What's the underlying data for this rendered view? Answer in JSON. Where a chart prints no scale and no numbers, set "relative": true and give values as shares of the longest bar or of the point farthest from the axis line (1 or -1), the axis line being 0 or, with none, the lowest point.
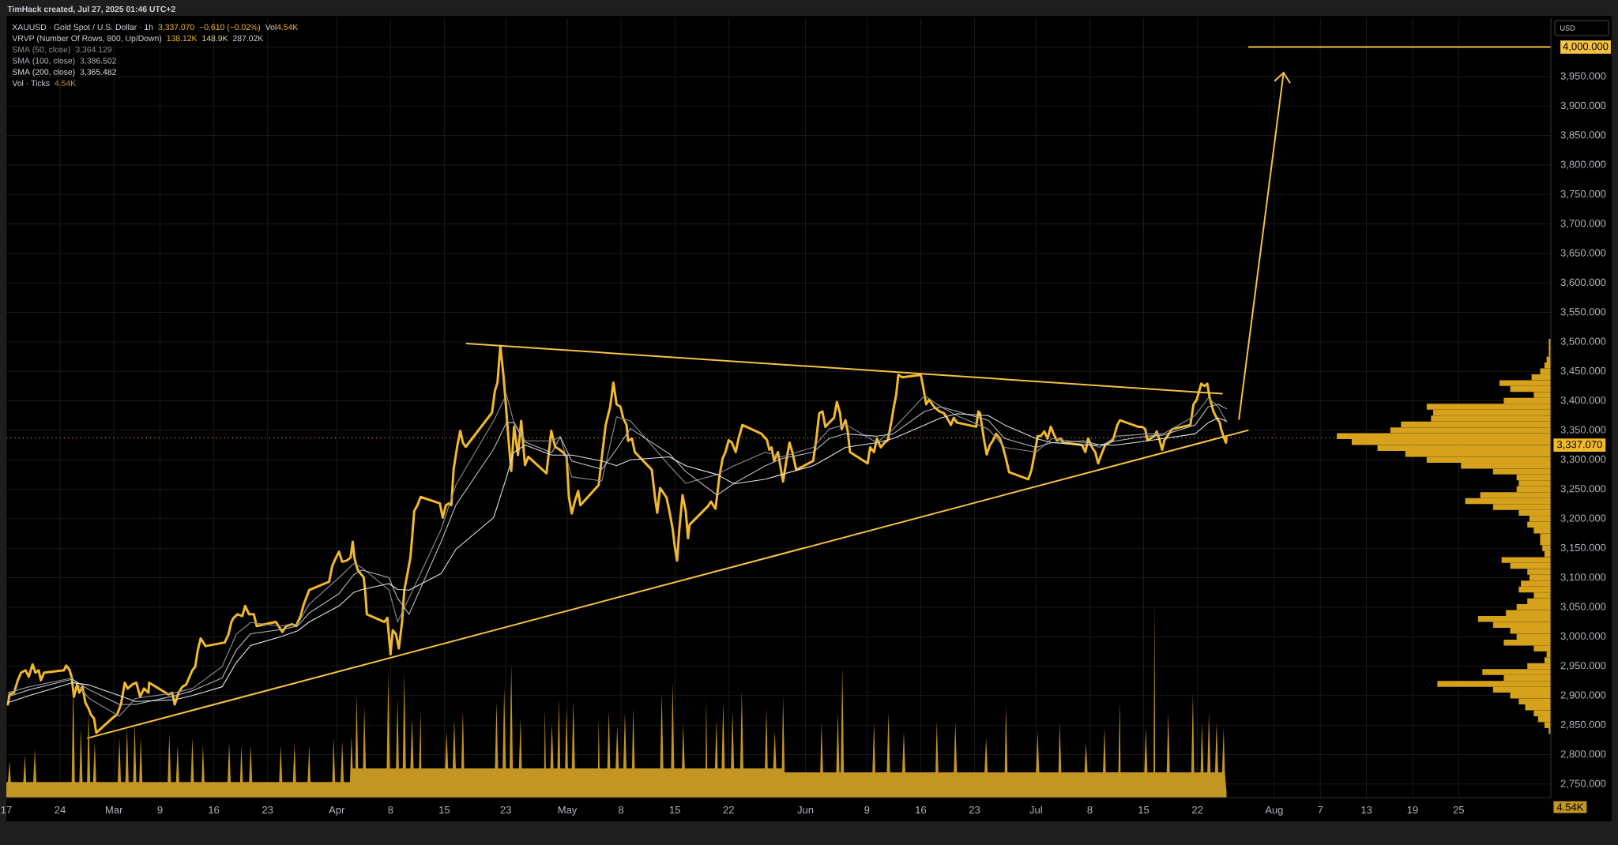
{
  "chart_data": [
    {
      "type": "line",
      "title": "XAUUSD · Gold Spot / U.S. Dollar · 1h",
      "ylabel": "USD",
      "annotations": [
        "TimHack created, Jul 27, 2025 01:46 UTC+2",
        "3,337.070",
        "−0.610 (−0.02%)",
        "Vol",
        "4.54K",
        "VRVP (Number Of Rows, 800, Up/Down)",
        "138.12K",
        "148.9K",
        "287.02K",
        "3,364.129",
        "3,386.502",
        "3,365.482"
      ],
      "xlim": [
        "2025-02-17T00:00",
        "2025-09-06T00:00"
      ],
      "ylim": [
        2727,
        4049
      ],
      "xticks": [
        {
          "value": "2025-02-17",
          "label": "17"
        },
        {
          "value": "2025-02-24",
          "label": "24"
        },
        {
          "value": "2025-03-03",
          "label": "Mar"
        },
        {
          "value": "2025-03-09",
          "label": "9"
        },
        {
          "value": "2025-03-16",
          "label": "16"
        },
        {
          "value": "2025-03-23",
          "label": "23"
        },
        {
          "value": "2025-04-01",
          "label": "Apr"
        },
        {
          "value": "2025-04-08",
          "label": "8"
        },
        {
          "value": "2025-04-15",
          "label": "15"
        },
        {
          "value": "2025-04-23",
          "label": "23"
        },
        {
          "value": "2025-05-01",
          "label": "May"
        },
        {
          "value": "2025-05-08",
          "label": "8"
        },
        {
          "value": "2025-05-15",
          "label": "15"
        },
        {
          "value": "2025-05-22",
          "label": "22"
        },
        {
          "value": "2025-06-01",
          "label": "Jun"
        },
        {
          "value": "2025-06-09",
          "label": "9"
        },
        {
          "value": "2025-06-16",
          "label": "16"
        },
        {
          "value": "2025-06-23",
          "label": "23"
        },
        {
          "value": "2025-07-01",
          "label": "Jul"
        },
        {
          "value": "2025-07-08",
          "label": "8"
        },
        {
          "value": "2025-07-15",
          "label": "15"
        },
        {
          "value": "2025-07-22",
          "label": "22"
        },
        {
          "value": "2025-08-01",
          "label": "Aug"
        },
        {
          "value": "2025-08-07",
          "label": "7"
        },
        {
          "value": "2025-08-13",
          "label": "13"
        },
        {
          "value": "2025-08-19",
          "label": "19"
        },
        {
          "value": "2025-08-25",
          "label": "25"
        }
      ],
      "yticks": [
        {
          "value": 2750,
          "label": "2,750.000"
        },
        {
          "value": 2800,
          "label": "2,800.000"
        },
        {
          "value": 2850,
          "label": "2,850.000"
        },
        {
          "value": 2900,
          "label": "2,900.000"
        },
        {
          "value": 2950,
          "label": "2,950.000"
        },
        {
          "value": 3000,
          "label": "3,000.000"
        },
        {
          "value": 3050,
          "label": "3,050.000"
        },
        {
          "value": 3100,
          "label": "3,100.000"
        },
        {
          "value": 3150,
          "label": "3,150.000"
        },
        {
          "value": 3200,
          "label": "3,200.000"
        },
        {
          "value": 3250,
          "label": "3,250.000"
        },
        {
          "value": 3300,
          "label": "3,300.000"
        },
        {
          "value": 3350,
          "label": "3,350.000"
        },
        {
          "value": 3400,
          "label": "3,400.000"
        },
        {
          "value": 3450,
          "label": "3,450.000"
        },
        {
          "value": 3500,
          "label": "3,500.000"
        },
        {
          "value": 3550,
          "label": "3,550.000"
        },
        {
          "value": 3600,
          "label": "3,600.000"
        },
        {
          "value": 3650,
          "label": "3,650.000"
        },
        {
          "value": 3700,
          "label": "3,700.000"
        },
        {
          "value": 3750,
          "label": "3,750.000"
        },
        {
          "value": 3800,
          "label": "3,800.000"
        },
        {
          "value": 3850,
          "label": "3,850.000"
        },
        {
          "value": 3900,
          "label": "3,900.000"
        },
        {
          "value": 3950,
          "label": "3,950.000"
        },
        {
          "value": 4000,
          "label": "4,000.000"
        }
      ],
      "grid": true,
      "legend": "top left",
      "ref_lines": [
        {
          "axis": "y",
          "value": 3337.07,
          "label": "3,337.070",
          "color": "#f2b92c",
          "line_style": "dotted"
        }
      ],
      "x": [
        "2025-02-17T05:00",
        "2025-02-20T00:00",
        "2025-02-25T14:00",
        "2025-02-27T19:00",
        "2025-03-03T17:00",
        "2025-03-05T19:00",
        "2025-03-11T00:00",
        "2025-03-13T05:00",
        "2025-03-17T02:00",
        "2025-03-18T22:00",
        "2025-03-20T19:00",
        "2025-03-24T17:00",
        "2025-03-26T22:00",
        "2025-03-28T10:00",
        "2025-04-01T07:00",
        "2025-04-03T05:00",
        "2025-04-04T07:00",
        "2025-04-07T19:00",
        "2025-04-08T22:00",
        "2025-04-10T10:00",
        "2025-04-14T14:00",
        "2025-04-16T12:00",
        "2025-04-21T10:00",
        "2025-04-23T02:00",
        "2025-04-24T00:00",
        "2025-04-25T12:00",
        "2025-04-29T00:00",
        "2025-04-30T02:00",
        "2025-05-01T14:00",
        "2025-05-05T12:00",
        "2025-05-07T10:00",
        "2025-05-09T05:00",
        "2025-05-14T07:00",
        "2025-05-16T10:00",
        "2025-05-20T12:00",
        "2025-05-22T17:00",
        "2025-05-26T19:00",
        "2025-05-28T22:00",
        "2025-06-02T00:00",
        "2025-06-04T02:00",
        "2025-06-06T05:00",
        "2025-06-10T07:00",
        "2025-06-12T10:00",
        "2025-06-16T12:00",
        "2025-06-18T14:00",
        "2025-06-20T17:00",
        "2025-06-24T19:00",
        "2025-06-26T22:00",
        "2025-07-01T00:00",
        "2025-07-03T02:00",
        "2025-07-07T05:00",
        "2025-07-09T07:00",
        "2025-07-11T10:00",
        "2025-07-15T12:00",
        "2025-07-17T14:00",
        "2025-07-21T17:00",
        "2025-07-23T10:00",
        "2025-07-24T17:00",
        "2025-07-25T19:00"
      ],
      "series": [
        {
          "color": "#f2b92c",
          "x": [
            "2025-02-17T05:00",
            "2025-02-17T10:00",
            "2025-02-18T00:00",
            "2025-02-18T12:00",
            "2025-02-18T22:00",
            "2025-02-19T12:00",
            "2025-02-19T22:00",
            "2025-02-20T10:00",
            "2025-02-20T19:00",
            "2025-02-21T05:00",
            "2025-02-21T12:00",
            "2025-02-21T22:00",
            "2025-02-24T12:00",
            "2025-02-24T19:00",
            "2025-02-25T05:00",
            "2025-02-25T12:00",
            "2025-02-25T19:00",
            "2025-02-26T05:00",
            "2025-02-26T12:00",
            "2025-02-26T22:00",
            "2025-02-27T07:00",
            "2025-02-27T17:00",
            "2025-02-28T00:00",
            "2025-02-28T10:00",
            "2025-02-28T17:00",
            "2025-03-03T00:00",
            "2025-03-03T10:00",
            "2025-03-03T22:00",
            "2025-03-04T10:00",
            "2025-03-04T19:00",
            "2025-03-05T10:00",
            "2025-03-05T22:00",
            "2025-03-06T10:00",
            "2025-03-06T22:00",
            "2025-03-07T12:00",
            "2025-03-07T14:00",
            "2025-03-10T02:00",
            "2025-03-10T14:00",
            "2025-03-10T22:00",
            "2025-03-11T10:00",
            "2025-03-11T22:00",
            "2025-03-12T10:00",
            "2025-03-13T05:00",
            "2025-03-13T14:00",
            "2025-03-13T22:00",
            "2025-03-14T07:00",
            "2025-03-14T22:00",
            "2025-03-17T10:00",
            "2025-03-17T22:00",
            "2025-03-18T07:00",
            "2025-03-18T14:00",
            "2025-03-19T02:00",
            "2025-03-19T17:00",
            "2025-03-20T02:00",
            "2025-03-20T14:00",
            "2025-03-21T05:00",
            "2025-03-21T14:00",
            "2025-03-24T02:00",
            "2025-03-24T22:00",
            "2025-03-25T10:00",
            "2025-03-26T05:00",
            "2025-03-26T17:00",
            "2025-03-27T07:00",
            "2025-03-27T17:00",
            "2025-03-28T10:00",
            "2025-03-31T00:00",
            "2025-03-31T10:00",
            "2025-03-31T19:00",
            "2025-04-01T07:00",
            "2025-04-01T17:00",
            "2025-04-02T07:00",
            "2025-04-02T19:00",
            "2025-04-03T02:00",
            "2025-04-03T07:00",
            "2025-04-03T17:00",
            "2025-04-04T02:00",
            "2025-04-04T12:00",
            "2025-04-04T17:00",
            "2025-04-04T22:00",
            "2025-04-07T05:00",
            "2025-04-07T14:00",
            "2025-04-08T00:00",
            "2025-04-08T07:00",
            "2025-04-08T17:00",
            "2025-04-09T02:00",
            "2025-04-09T12:00",
            "2025-04-09T19:00",
            "2025-04-10T05:00",
            "2025-04-10T14:00",
            "2025-04-10T19:00",
            "2025-04-11T02:00",
            "2025-04-11T12:00",
            "2025-04-11T22:00",
            "2025-04-14T10:00",
            "2025-04-14T19:00",
            "2025-04-15T05:00",
            "2025-04-15T14:00",
            "2025-04-15T22:00",
            "2025-04-16T05:00",
            "2025-04-16T17:00",
            "2025-04-17T02:00",
            "2025-04-17T10:00",
            "2025-04-17T19:00",
            "2025-04-21T05:00",
            "2025-04-21T14:00",
            "2025-04-21T22:00",
            "2025-04-22T07:00",
            "2025-04-22T17:00",
            "2025-04-23T02:00",
            "2025-04-23T10:00",
            "2025-04-23T17:00",
            "2025-04-24T02:00",
            "2025-04-24T14:00",
            "2025-04-25T00:00",
            "2025-04-25T12:00",
            "2025-04-25T22:00",
            "2025-04-28T07:00",
            "2025-04-28T22:00",
            "2025-04-29T10:00",
            "2025-04-29T22:00",
            "2025-04-30T12:00",
            "2025-04-30T22:00",
            "2025-05-01T05:00",
            "2025-05-01T14:00",
            "2025-05-02T00:00",
            "2025-05-02T10:00",
            "2025-05-02T17:00",
            "2025-05-05T02:00",
            "2025-05-05T12:00",
            "2025-05-06T00:00",
            "2025-05-06T14:00",
            "2025-05-07T00:00",
            "2025-05-07T10:00",
            "2025-05-07T22:00",
            "2025-05-08T07:00",
            "2025-05-08T17:00",
            "2025-05-08T22:00",
            "2025-05-09T10:00",
            "2025-05-09T19:00",
            "2025-05-12T00:00",
            "2025-05-12T10:00",
            "2025-05-12T17:00",
            "2025-05-13T02:00",
            "2025-05-13T12:00",
            "2025-05-13T22:00",
            "2025-05-14T07:00",
            "2025-05-14T17:00",
            "2025-05-15T00:00",
            "2025-05-15T07:00",
            "2025-05-15T14:00",
            "2025-05-16T00:00",
            "2025-05-16T10:00",
            "2025-05-16T17:00",
            "2025-05-16T22:00",
            "2025-05-19T07:00",
            "2025-05-19T17:00",
            "2025-05-20T07:00",
            "2025-05-20T19:00",
            "2025-05-21T05:00",
            "2025-05-21T14:00",
            "2025-05-22T00:00",
            "2025-05-22T10:00",
            "2025-05-22T22:00",
            "2025-05-23T07:00",
            "2025-05-23T19:00",
            "2025-05-26T07:00",
            "2025-05-27T00:00",
            "2025-05-27T07:00",
            "2025-05-27T14:00",
            "2025-05-27T22:00",
            "2025-05-28T10:00",
            "2025-05-28T22:00",
            "2025-05-29T02:00",
            "2025-05-29T12:00",
            "2025-05-29T22:00",
            "2025-05-30T07:00",
            "2025-05-30T19:00",
            "2025-06-02T00:00",
            "2025-06-02T10:00",
            "2025-06-02T19:00",
            "2025-06-03T05:00",
            "2025-06-03T14:00",
            "2025-06-04T02:00",
            "2025-06-04T17:00",
            "2025-06-05T02:00",
            "2025-06-05T12:00",
            "2025-06-05T17:00",
            "2025-06-06T05:00",
            "2025-06-06T12:00",
            "2025-06-06T19:00",
            "2025-06-09T02:00",
            "2025-06-09T10:00",
            "2025-06-09T22:00",
            "2025-06-10T07:00",
            "2025-06-10T19:00",
            "2025-06-11T07:00",
            "2025-06-11T17:00",
            "2025-06-12T05:00",
            "2025-06-12T12:00",
            "2025-06-12T19:00",
            "2025-06-13T02:00",
            "2025-06-13T14:00",
            "2025-06-16T00:00",
            "2025-06-16T07:00",
            "2025-06-16T17:00",
            "2025-06-17T02:00",
            "2025-06-17T17:00",
            "2025-06-18T10:00",
            "2025-06-19T00:00",
            "2025-06-19T10:00",
            "2025-06-19T22:00",
            "2025-06-20T07:00",
            "2025-06-20T17:00",
            "2025-06-23T05:00",
            "2025-06-23T12:00",
            "2025-06-23T17:00",
            "2025-06-24T05:00",
            "2025-06-24T14:00",
            "2025-06-25T00:00",
            "2025-06-25T10:00",
            "2025-06-25T19:00",
            "2025-06-26T07:00",
            "2025-06-26T17:00",
            "2025-06-27T02:00",
            "2025-06-27T12:00",
            "2025-06-30T00:00",
            "2025-06-30T10:00",
            "2025-06-30T19:00",
            "2025-07-01T05:00",
            "2025-07-01T14:00",
            "2025-07-02T02:00",
            "2025-07-02T12:00",
            "2025-07-02T22:00",
            "2025-07-03T07:00",
            "2025-07-03T17:00",
            "2025-07-04T05:00",
            "2025-07-04T14:00",
            "2025-07-07T00:00",
            "2025-07-07T10:00",
            "2025-07-07T19:00",
            "2025-07-08T07:00",
            "2025-07-08T17:00",
            "2025-07-09T02:00",
            "2025-07-09T12:00",
            "2025-07-10T00:00",
            "2025-07-10T12:00",
            "2025-07-11T00:00",
            "2025-07-11T14:00",
            "2025-07-11T22:00",
            "2025-07-14T07:00",
            "2025-07-14T19:00",
            "2025-07-15T05:00",
            "2025-07-15T12:00",
            "2025-07-15T22:00",
            "2025-07-16T10:00",
            "2025-07-16T17:00",
            "2025-07-17T02:00",
            "2025-07-17T10:00",
            "2025-07-17T17:00",
            "2025-07-18T02:00",
            "2025-07-18T17:00",
            "2025-07-21T02:00",
            "2025-07-21T12:00",
            "2025-07-21T22:00",
            "2025-07-22T12:00",
            "2025-07-22T22:00",
            "2025-07-23T07:00",
            "2025-07-23T14:00",
            "2025-07-24T02:00",
            "2025-07-24T12:00",
            "2025-07-24T22:00",
            "2025-07-25T02:00",
            "2025-07-25T12:00",
            "2025-07-25T17:00",
            "2025-07-25T19:00"
          ],
          "values": [
            2885,
            2902,
            2905,
            2926,
            2939,
            2943,
            2932,
            2953,
            2939,
            2943,
            2926,
            2939,
            2943,
            2951,
            2944,
            2932,
            2898,
            2919,
            2905,
            2915,
            2888,
            2878,
            2868,
            2861,
            2837,
            2864,
            2868,
            2885,
            2922,
            2912,
            2919,
            2922,
            2898,
            2912,
            2905,
            2922,
            2902,
            2905,
            2885,
            2905,
            2915,
            2919,
            2943,
            2949,
            2977,
            2997,
            2984,
            2990,
            3004,
            3025,
            3032,
            3038,
            3035,
            3052,
            3038,
            3038,
            3018,
            3025,
            3008,
            3018,
            3021,
            3018,
            3035,
            3055,
            3079,
            3093,
            3120,
            3131,
            3144,
            3127,
            3129,
            3134,
            3161,
            3134,
            3114,
            3107,
            3101,
            3076,
            3038,
            3025,
            3032,
            2970,
            3011,
            3004,
            2980,
            3025,
            3079,
            3107,
            3134,
            3165,
            3213,
            3223,
            3237,
            3226,
            3202,
            3223,
            3226,
            3223,
            3284,
            3325,
            3349,
            3329,
            3322,
            3380,
            3417,
            3431,
            3493,
            3441,
            3380,
            3325,
            3281,
            3356,
            3308,
            3366,
            3291,
            3305,
            3277,
            3349,
            3322,
            3318,
            3312,
            3305,
            3237,
            3209,
            3230,
            3247,
            3223,
            3257,
            3305,
            3359,
            3390,
            3431,
            3394,
            3390,
            3370,
            3359,
            3332,
            3336,
            3313,
            3283,
            3236,
            3210,
            3252,
            3244,
            3236,
            3213,
            3183,
            3152,
            3129,
            3183,
            3240,
            3213,
            3167,
            3190,
            3221,
            3229,
            3217,
            3271,
            3302,
            3313,
            3333,
            3329,
            3313,
            3336,
            3359,
            3344,
            3333,
            3317,
            3321,
            3298,
            3313,
            3275,
            3263,
            3298,
            3329,
            3313,
            3283,
            3298,
            3336,
            3379,
            3382,
            3356,
            3363,
            3371,
            3398,
            3379,
            3352,
            3367,
            3348,
            3313,
            3294,
            3321,
            3313,
            3336,
            3321,
            3329,
            3333,
            3367,
            3390,
            3409,
            3444,
            3440,
            3444,
            3425,
            3394,
            3402,
            3390,
            3382,
            3379,
            3371,
            3359,
            3371,
            3363,
            3356,
            3382,
            3379,
            3336,
            3309,
            3325,
            3333,
            3344,
            3336,
            3321,
            3302,
            3279,
            3267,
            3283,
            3309,
            3340,
            3340,
            3348,
            3336,
            3356,
            3344,
            3333,
            3336,
            3329,
            3325,
            3313,
            3336,
            3321,
            3313,
            3294,
            3309,
            3325,
            3329,
            3333,
            3359,
            3367,
            3356,
            3356,
            3352,
            3333,
            3336,
            3340,
            3348,
            3333,
            3317,
            3333,
            3340,
            3352,
            3359,
            3394,
            3402,
            3429,
            3425,
            3429,
            3406,
            3382,
            3371,
            3363,
            3352,
            3336,
            3329,
            3337.07
          ]
        },
        {
          "name": "SMA (50, close)",
          "color": "#8c8f98",
          "values": [
            2905,
            2915,
            2930,
            2895,
            2865,
            2895,
            2905,
            2912,
            2949,
            3004,
            3024,
            3018,
            3021,
            3055,
            3100,
            3124,
            3117,
            3079,
            3025,
            3066,
            3182,
            3257,
            3366,
            3411,
            3366,
            3332,
            3332,
            3339,
            3271,
            3264,
            3373,
            3366,
            3290,
            3260,
            3275,
            3290,
            3313,
            3305,
            3321,
            3352,
            3360,
            3329,
            3352,
            3409,
            3390,
            3375,
            3352,
            3321,
            3313,
            3336,
            3329,
            3321,
            3340,
            3344,
            3344,
            3375,
            3405,
            3390,
            3364.129
          ]
        },
        {
          "name": "SMA (100, close)",
          "color": "#b7bac2",
          "values": [
            2898,
            2910,
            2928,
            2910,
            2885,
            2885,
            2900,
            2908,
            2930,
            2977,
            3005,
            3012,
            3018,
            3040,
            3073,
            3105,
            3113,
            3100,
            3065,
            3038,
            3161,
            3223,
            3318,
            3363,
            3363,
            3330,
            3312,
            3339,
            3298,
            3284,
            3318,
            3353,
            3310,
            3280,
            3240,
            3260,
            3290,
            3302,
            3313,
            3336,
            3344,
            3340,
            3344,
            3382,
            3390,
            3382,
            3367,
            3336,
            3321,
            3329,
            3332,
            3325,
            3332,
            3340,
            3342,
            3359,
            3390,
            3394,
            3386.502
          ]
        },
        {
          "name": "SMA (200, close)",
          "color": "#e0e3eb",
          "values": [
            2888,
            2900,
            2922,
            2918,
            2900,
            2890,
            2893,
            2900,
            2915,
            2956,
            2985,
            3000,
            3010,
            3025,
            3052,
            3075,
            3080,
            3090,
            3080,
            3079,
            3107,
            3148,
            3202,
            3270,
            3312,
            3325,
            3308,
            3308,
            3308,
            3298,
            3290,
            3300,
            3305,
            3290,
            3275,
            3259,
            3267,
            3275,
            3290,
            3305,
            3321,
            3329,
            3336,
            3359,
            3371,
            3378,
            3375,
            3359,
            3336,
            3329,
            3325,
            3325,
            3325,
            3332,
            3336,
            3344,
            3363,
            3371,
            3365.482
          ]
        },
        {
          "color": "#f5c243",
          "x": [
            "2025-04-17T22:00",
            "2025-07-25T05:00"
          ],
          "values": [
            3497,
            3412
          ]
        },
        {
          "color": "#f5c243",
          "x": [
            "2025-02-27T14:00",
            "2025-07-28T14:00"
          ],
          "values": [
            2828,
            3350
          ]
        },
        {
          "color": "#f5c243",
          "x": [
            "2025-07-28T17:00",
            "2025-09-06T00:00"
          ],
          "values": [
            4000,
            4000
          ]
        }
      ]
    },
    {
      "type": "area",
      "title": "Vol · Ticks",
      "relative": true,
      "annotations": [
        "4.54K",
        "4.54K"
      ],
      "xlim": [
        "2025-02-17T00:00",
        "2025-09-06T00:00"
      ],
      "tick_labels": false,
      "color": "#c39624",
      "x": [
        "2025-02-17T00:00",
        "2025-02-17T05:00",
        "2025-02-17T10:00",
        "2025-02-17T14:00",
        "2025-02-19T05:00",
        "2025-02-19T10:00",
        "2025-02-19T14:00",
        "2025-02-20T12:00",
        "2025-02-20T17:00",
        "2025-02-20T22:00",
        "2025-02-25T12:00",
        "2025-02-25T17:00",
        "2025-02-25T22:00",
        "2025-02-26T12:00",
        "2025-02-26T17:00",
        "2025-02-26T22:00",
        "2025-02-27T12:00",
        "2025-02-27T17:00",
        "2025-02-27T22:00",
        "2025-02-28T07:00",
        "2025-02-28T12:00",
        "2025-02-28T17:00",
        "2025-03-03T12:00",
        "2025-03-03T17:00",
        "2025-03-03T22:00",
        "2025-03-04T12:00",
        "2025-03-04T17:00",
        "2025-03-04T22:00",
        "2025-03-05T12:00",
        "2025-03-05T17:00",
        "2025-03-05T22:00",
        "2025-03-06T07:00",
        "2025-03-06T12:00",
        "2025-03-06T17:00",
        "2025-03-10T00:00",
        "2025-03-10T05:00",
        "2025-03-10T10:00",
        "2025-03-11T02:00",
        "2025-03-11T07:00",
        "2025-03-11T12:00",
        "2025-03-13T00:00",
        "2025-03-13T05:00",
        "2025-03-13T10:00",
        "2025-03-14T10:00",
        "2025-03-14T14:00",
        "2025-03-14T19:00",
        "2025-03-17T19:00",
        "2025-03-18T00:00",
        "2025-03-18T05:00",
        "2025-03-19T10:00",
        "2025-03-19T14:00",
        "2025-03-19T19:00",
        "2025-03-20T14:00",
        "2025-03-20T19:00",
        "2025-03-21T00:00",
        "2025-03-24T12:00",
        "2025-03-24T17:00",
        "2025-03-24T22:00",
        "2025-03-26T07:00",
        "2025-03-26T12:00",
        "2025-03-26T17:00",
        "2025-03-28T05:00",
        "2025-03-28T10:00",
        "2025-03-28T14:00",
        "2025-03-31T10:00",
        "2025-03-31T14:00",
        "2025-03-31T19:00",
        "2025-04-01T12:00",
        "2025-04-01T17:00",
        "2025-04-01T22:00",
        "2025-04-02T17:00",
        "2025-04-02T22:00",
        "2025-04-03T02:00",
        "2025-04-03T10:00",
        "2025-04-03T14:00",
        "2025-04-03T19:00",
        "2025-04-04T10:00",
        "2025-04-04T14:00",
        "2025-04-04T19:00",
        "2025-04-07T12:00",
        "2025-04-07T17:00",
        "2025-04-07T22:00",
        "2025-04-08T17:00",
        "2025-04-08T22:00",
        "2025-04-09T02:00",
        "2025-04-09T14:00",
        "2025-04-09T19:00",
        "2025-04-10T00:00",
        "2025-04-10T14:00",
        "2025-04-10T19:00",
        "2025-04-11T00:00",
        "2025-04-11T17:00",
        "2025-04-11T22:00",
        "2025-04-12T00:00",
        "2025-04-15T02:00",
        "2025-04-15T07:00",
        "2025-04-15T12:00",
        "2025-04-16T02:00",
        "2025-04-16T07:00",
        "2025-04-16T12:00",
        "2025-04-17T05:00",
        "2025-04-17T10:00",
        "2025-04-17T14:00",
        "2025-04-21T14:00",
        "2025-04-21T19:00",
        "2025-04-22T00:00",
        "2025-04-22T14:00",
        "2025-04-22T19:00",
        "2025-04-23T00:00",
        "2025-04-23T12:00",
        "2025-04-23T17:00",
        "2025-04-23T22:00",
        "2025-04-24T17:00",
        "2025-04-24T22:00",
        "2025-04-25T02:00",
        "2025-04-28T00:00",
        "2025-04-28T02:00",
        "2025-04-28T05:00",
        "2025-04-28T19:00",
        "2025-04-29T00:00",
        "2025-04-29T05:00",
        "2025-04-29T17:00",
        "2025-04-29T22:00",
        "2025-04-30T02:00",
        "2025-04-30T17:00",
        "2025-04-30T22:00",
        "2025-05-01T02:00",
        "2025-05-01T14:00",
        "2025-05-01T19:00",
        "2025-05-02T00:00",
        "2025-05-05T00:00",
        "2025-05-05T02:00",
        "2025-05-05T05:00",
        "2025-05-06T05:00",
        "2025-05-06T10:00",
        "2025-05-06T14:00",
        "2025-05-07T07:00",
        "2025-05-07T12:00",
        "2025-05-07T17:00",
        "2025-05-08T07:00",
        "2025-05-08T12:00",
        "2025-05-08T17:00",
        "2025-05-09T10:00",
        "2025-05-09T14:00",
        "2025-05-09T19:00",
        "2025-05-13T02:00",
        "2025-05-13T07:00",
        "2025-05-13T12:00",
        "2025-05-14T12:00",
        "2025-05-14T17:00",
        "2025-05-14T22:00",
        "2025-05-15T22:00",
        "2025-05-16T02:00",
        "2025-05-16T07:00",
        "2025-05-19T00:00",
        "2025-05-19T02:00",
        "2025-05-19T05:00",
        "2025-05-20T05:00",
        "2025-05-20T10:00",
        "2025-05-20T14:00",
        "2025-05-21T02:00",
        "2025-05-21T07:00",
        "2025-05-21T12:00",
        "2025-05-22T07:00",
        "2025-05-22T12:00",
        "2025-05-22T17:00",
        "2025-05-23T12:00",
        "2025-05-23T17:00",
        "2025-05-23T22:00",
        "2025-05-26T17:00",
        "2025-05-26T22:00",
        "2025-05-27T02:00",
        "2025-05-27T19:00",
        "2025-05-28T00:00",
        "2025-05-28T05:00",
        "2025-05-28T22:00",
        "2025-05-29T02:00",
        "2025-05-29T07:00",
        "2025-06-02T22:00",
        "2025-06-03T02:00",
        "2025-06-03T07:00",
        "2025-06-05T00:00",
        "2025-06-05T05:00",
        "2025-06-05T10:00",
        "2025-06-05T14:00",
        "2025-06-05T19:00",
        "2025-06-06T00:00",
        "2025-06-09T17:00",
        "2025-06-09T22:00",
        "2025-06-10T02:00",
        "2025-06-11T14:00",
        "2025-06-11T19:00",
        "2025-06-12T00:00",
        "2025-06-13T14:00",
        "2025-06-13T19:00",
        "2025-06-14T00:00",
        "2025-06-17T22:00",
        "2025-06-18T02:00",
        "2025-06-18T07:00",
        "2025-06-20T07:00",
        "2025-06-20T12:00",
        "2025-06-20T17:00",
        "2025-06-24T07:00",
        "2025-06-24T12:00",
        "2025-06-24T17:00",
        "2025-06-26T22:00",
        "2025-06-27T02:00",
        "2025-06-27T07:00",
        "2025-07-01T00:00",
        "2025-07-01T05:00",
        "2025-07-01T10:00",
        "2025-07-03T22:00",
        "2025-07-04T02:00",
        "2025-07-04T07:00",
        "2025-07-07T07:00",
        "2025-07-07T12:00",
        "2025-07-07T17:00",
        "2025-07-09T17:00",
        "2025-07-09T22:00",
        "2025-07-10T02:00",
        "2025-07-11T17:00",
        "2025-07-11T22:00",
        "2025-07-12T00:00",
        "2025-07-15T02:00",
        "2025-07-15T07:00",
        "2025-07-15T12:00",
        "2025-07-16T07:00",
        "2025-07-16T10:00",
        "2025-07-16T12:00",
        "2025-07-18T00:00",
        "2025-07-18T05:00",
        "2025-07-18T10:00",
        "2025-07-21T05:00",
        "2025-07-21T10:00",
        "2025-07-21T14:00",
        "2025-07-22T10:00",
        "2025-07-22T14:00",
        "2025-07-22T19:00",
        "2025-07-23T07:00",
        "2025-07-23T12:00",
        "2025-07-23T17:00",
        "2025-07-24T07:00",
        "2025-07-24T12:00",
        "2025-07-24T17:00",
        "2025-07-25T05:00",
        "2025-07-25T10:00",
        "2025-07-25T14:00",
        "2025-07-25T19:00"
      ],
      "values": [
        0.08,
        0.08,
        0.19,
        0.08,
        0.08,
        0.22,
        0.08,
        0.08,
        0.25,
        0.08,
        0.08,
        0.59,
        0.08,
        0.08,
        0.36,
        0.08,
        0.08,
        0.44,
        0.08,
        0.08,
        0.29,
        0.08,
        0.08,
        0.31,
        0.08,
        0.08,
        0.36,
        0.08,
        0.08,
        0.38,
        0.08,
        0.08,
        0.31,
        0.08,
        0.08,
        0.33,
        0.08,
        0.08,
        0.27,
        0.08,
        0.08,
        0.31,
        0.08,
        0.08,
        0.27,
        0.08,
        0.08,
        0.28,
        0.08,
        0.08,
        0.27,
        0.08,
        0.08,
        0.27,
        0.08,
        0.08,
        0.27,
        0.08,
        0.08,
        0.28,
        0.08,
        0.08,
        0.27,
        0.08,
        0.08,
        0.31,
        0.08,
        0.08,
        0.29,
        0.08,
        0.08,
        0.32,
        0.15,
        0.15,
        0.53,
        0.15,
        0.15,
        0.47,
        0.15,
        0.15,
        0.64,
        0.15,
        0.15,
        0.51,
        0.15,
        0.15,
        0.64,
        0.15,
        0.15,
        0.41,
        0.15,
        0.15,
        0.45,
        0.15,
        0.15,
        0.34,
        0.15,
        0.15,
        0.4,
        0.15,
        0.15,
        0.45,
        0.15,
        0.15,
        0.49,
        0.15,
        0.15,
        0.57,
        0.15,
        0.15,
        0.69,
        0.15,
        0.15,
        0.41,
        0.15,
        0.15,
        0.46,
        0.15,
        0.15,
        0.38,
        0.15,
        0.15,
        0.51,
        0.15,
        0.15,
        0.46,
        0.15,
        0.15,
        0.5,
        0.15,
        0.15,
        0.41,
        0.15,
        0.15,
        0.45,
        0.15,
        0.15,
        0.37,
        0.15,
        0.15,
        0.44,
        0.15,
        0.15,
        0.46,
        0.15,
        0.15,
        0.54,
        0.15,
        0.15,
        0.59,
        0.15,
        0.15,
        0.38,
        0.15,
        0.15,
        0.51,
        0.15,
        0.15,
        0.4,
        0.15,
        0.15,
        0.49,
        0.15,
        0.15,
        0.44,
        0.15,
        0.15,
        0.55,
        0.15,
        0.15,
        0.46,
        0.15,
        0.15,
        0.34,
        0.15,
        0.15,
        0.52,
        0.13,
        0.13,
        0.39,
        0.13,
        0.13,
        0.44,
        0.13,
        0.13,
        0.67,
        0.13,
        0.13,
        0.39,
        0.13,
        0.13,
        0.44,
        0.13,
        0.13,
        0.34,
        0.13,
        0.13,
        0.39,
        0.13,
        0.13,
        0.39,
        0.13,
        0.13,
        0.31,
        0.13,
        0.13,
        0.47,
        0.13,
        0.13,
        0.34,
        0.13,
        0.13,
        0.39,
        0.13,
        0.13,
        0.28,
        0.13,
        0.13,
        0.36,
        0.13,
        0.13,
        0.5,
        0.13,
        0.13,
        0.36,
        0.13,
        0.13,
        1.0,
        0.13,
        0.13,
        0.44,
        0.13,
        0.13,
        0.54,
        0.13,
        0.13,
        0.39,
        0.13,
        0.13,
        0.44,
        0.13,
        0.13,
        0.39,
        0.13,
        0.13,
        0.36,
        0.13,
        0.03
      ]
    },
    {
      "type": "bar",
      "orientation": "horizontal",
      "relative": true,
      "color": "#d6a21c",
      "ylim": [
        2727,
        4049
      ],
      "tick_labels": false,
      "x": [
        3500,
        3490,
        3480,
        3470,
        3460,
        3450,
        3440,
        3430,
        3420,
        3410,
        3400,
        3390,
        3380,
        3370,
        3360,
        3350,
        3340,
        3330,
        3320,
        3310,
        3300,
        3290,
        3280,
        3270,
        3260,
        3250,
        3240,
        3230,
        3220,
        3210,
        3200,
        3190,
        3180,
        3170,
        3160,
        3150,
        3140,
        3130,
        3120,
        3110,
        3100,
        3090,
        3080,
        3070,
        3060,
        3050,
        3040,
        3030,
        3020,
        3010,
        3000,
        2990,
        2980,
        2970,
        2960,
        2950,
        2940,
        2930,
        2920,
        2910,
        2900,
        2890,
        2880,
        2870,
        2860,
        2850,
        2840
      ],
      "values": [
        0.01,
        0.01,
        0.01,
        0.02,
        0.03,
        0.05,
        0.09,
        0.24,
        0.19,
        0.08,
        0.22,
        0.58,
        0.55,
        0.56,
        0.7,
        0.75,
        1.0,
        0.93,
        0.81,
        0.68,
        0.58,
        0.42,
        0.27,
        0.16,
        0.15,
        0.16,
        0.33,
        0.4,
        0.27,
        0.15,
        0.1,
        0.11,
        0.08,
        0.05,
        0.05,
        0.04,
        0.03,
        0.23,
        0.19,
        0.11,
        0.1,
        0.14,
        0.15,
        0.08,
        0.11,
        0.16,
        0.21,
        0.34,
        0.27,
        0.19,
        0.16,
        0.22,
        0.08,
        0.02,
        0.03,
        0.11,
        0.32,
        0.22,
        0.53,
        0.27,
        0.19,
        0.15,
        0.12,
        0.08,
        0.06,
        0.03,
        0.01
      ]
    }
  ]
}
